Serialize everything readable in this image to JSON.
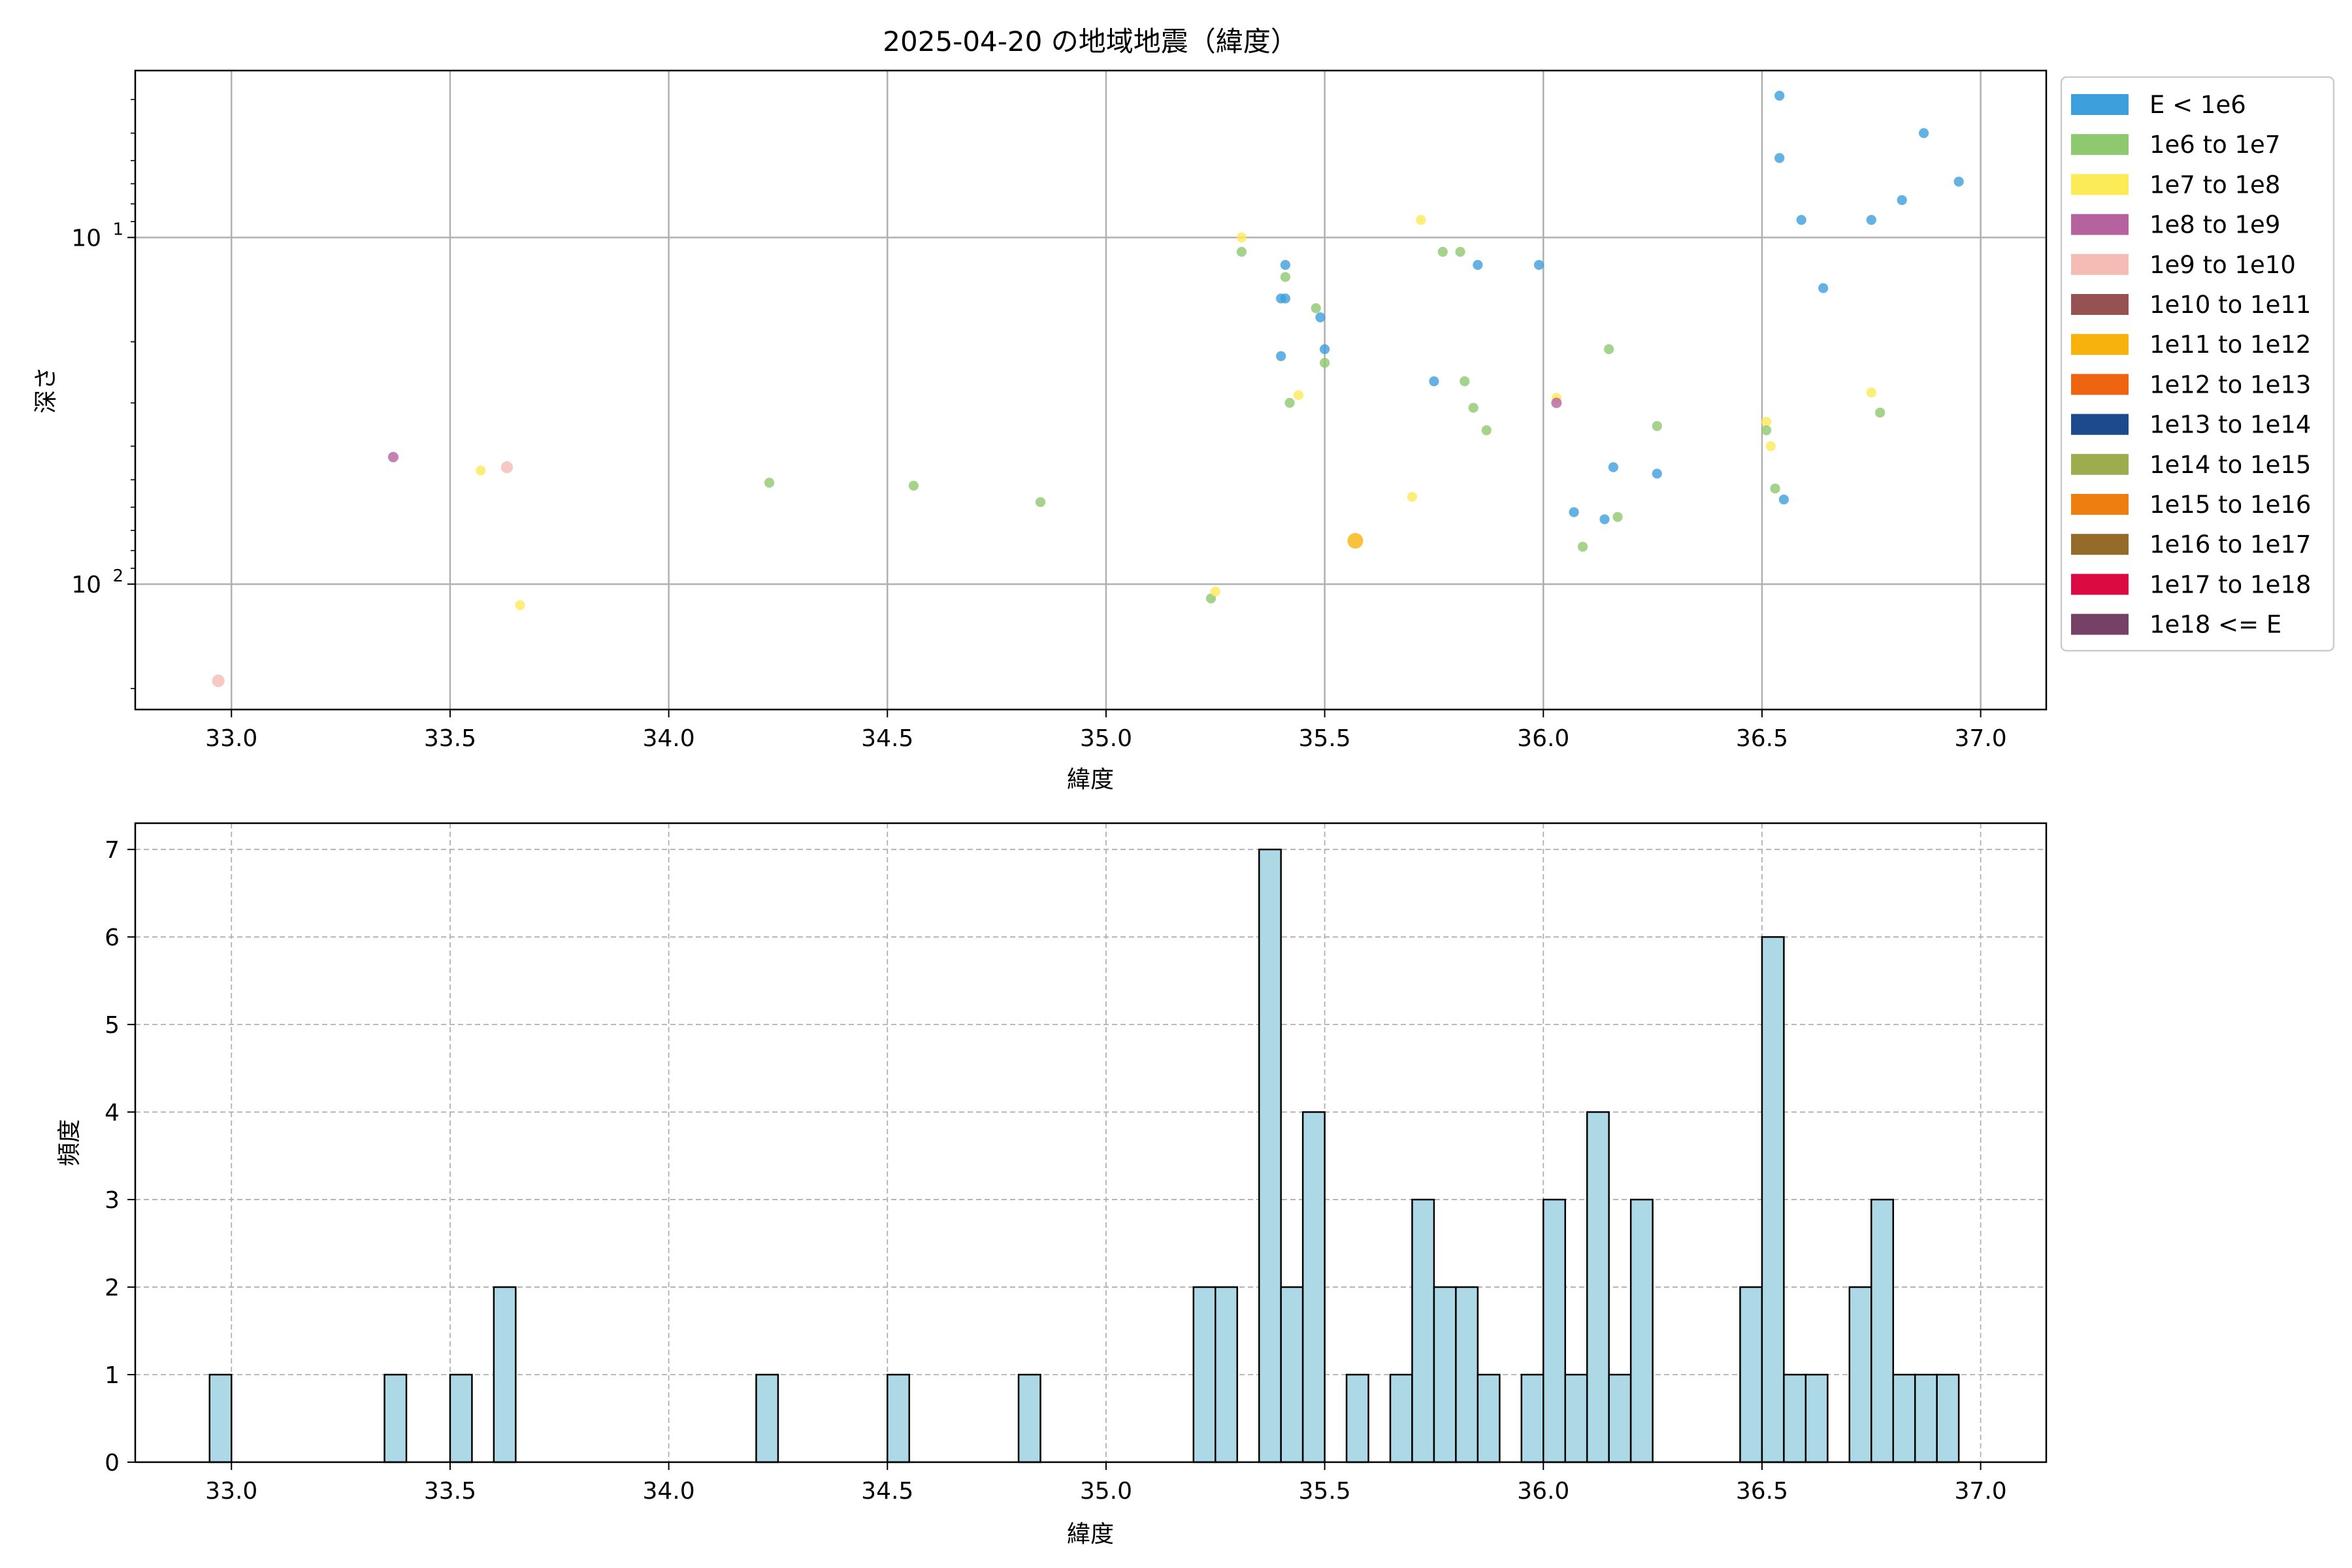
{
  "chart_data": [
    {
      "type": "scatter",
      "title": "2025-04-20 の地域地震（緯度）",
      "xlabel": "緯度",
      "ylabel": "深さ",
      "xlim": [
        32.78,
        37.15
      ],
      "ylim": [
        230,
        3.3
      ],
      "y_scale": "log",
      "y_inverted": true,
      "grid": true,
      "x_ticks": [
        "33.0",
        "33.5",
        "34.0",
        "34.5",
        "35.0",
        "35.5",
        "36.0",
        "36.5",
        "37.0"
      ],
      "y_ticks": [
        {
          "value": 10,
          "base": "10",
          "exp": "1"
        },
        {
          "value": 100,
          "base": "10",
          "exp": "2"
        }
      ],
      "legend": {
        "placement": "outside-right",
        "entries": [
          {
            "label": "E < 1e6",
            "color": "#3d9fdc"
          },
          {
            "label": "1e6 to 1e7",
            "color": "#8ec86f"
          },
          {
            "label": "1e7 to 1e8",
            "color": "#fdea57"
          },
          {
            "label": "1e8 to 1e9",
            "color": "#b5629f"
          },
          {
            "label": "1e9 to 1e10",
            "color": "#f5bcb6"
          },
          {
            "label": "1e10 to 1e11",
            "color": "#955251"
          },
          {
            "label": "1e11 to 1e12",
            "color": "#f7b30b"
          },
          {
            "label": "1e12 to 1e13",
            "color": "#ee6410"
          },
          {
            "label": "1e13 to 1e14",
            "color": "#1d4a8d"
          },
          {
            "label": "1e14 to 1e15",
            "color": "#9dad4e"
          },
          {
            "label": "1e15 to 1e16",
            "color": "#ef7e11"
          },
          {
            "label": "1e16 to 1e17",
            "color": "#956b2a"
          },
          {
            "label": "1e17 to 1e18",
            "color": "#db0a40"
          },
          {
            "label": "1e18 <= E",
            "color": "#764166"
          }
        ]
      },
      "points": [
        {
          "x": 32.97,
          "y": 190,
          "c": 4,
          "s": 1.2
        },
        {
          "x": 33.37,
          "y": 43,
          "c": 3,
          "s": 1.0
        },
        {
          "x": 33.57,
          "y": 47,
          "c": 2,
          "s": 0.95
        },
        {
          "x": 33.63,
          "y": 46,
          "c": 4,
          "s": 1.15
        },
        {
          "x": 33.66,
          "y": 115,
          "c": 2,
          "s": 0.95
        },
        {
          "x": 34.23,
          "y": 51,
          "c": 1,
          "s": 0.95
        },
        {
          "x": 34.56,
          "y": 52,
          "c": 1,
          "s": 0.95
        },
        {
          "x": 34.85,
          "y": 58,
          "c": 1,
          "s": 0.95
        },
        {
          "x": 35.24,
          "y": 110,
          "c": 1,
          "s": 0.95
        },
        {
          "x": 35.25,
          "y": 105,
          "c": 2,
          "s": 0.95
        },
        {
          "x": 35.31,
          "y": 10,
          "c": 2,
          "s": 0.95
        },
        {
          "x": 35.31,
          "y": 11,
          "c": 1,
          "s": 0.95
        },
        {
          "x": 35.4,
          "y": 15,
          "c": 0,
          "s": 0.95
        },
        {
          "x": 35.41,
          "y": 15,
          "c": 0,
          "s": 0.95
        },
        {
          "x": 35.41,
          "y": 12,
          "c": 0,
          "s": 0.95
        },
        {
          "x": 35.41,
          "y": 13,
          "c": 1,
          "s": 0.95
        },
        {
          "x": 35.4,
          "y": 22,
          "c": 0,
          "s": 0.95
        },
        {
          "x": 35.42,
          "y": 30,
          "c": 1,
          "s": 0.95
        },
        {
          "x": 35.44,
          "y": 28.5,
          "c": 2,
          "s": 0.95
        },
        {
          "x": 35.48,
          "y": 16,
          "c": 1,
          "s": 0.95
        },
        {
          "x": 35.49,
          "y": 17,
          "c": 0,
          "s": 0.95
        },
        {
          "x": 35.5,
          "y": 21,
          "c": 0,
          "s": 0.95
        },
        {
          "x": 35.5,
          "y": 23,
          "c": 1,
          "s": 0.95
        },
        {
          "x": 35.57,
          "y": 75,
          "c": 6,
          "s": 1.5
        },
        {
          "x": 35.7,
          "y": 56,
          "c": 2,
          "s": 0.95
        },
        {
          "x": 35.72,
          "y": 8.9,
          "c": 2,
          "s": 0.95
        },
        {
          "x": 35.75,
          "y": 26,
          "c": 0,
          "s": 0.95
        },
        {
          "x": 35.77,
          "y": 11,
          "c": 1,
          "s": 0.95
        },
        {
          "x": 35.81,
          "y": 11,
          "c": 1,
          "s": 0.95
        },
        {
          "x": 35.82,
          "y": 26,
          "c": 1,
          "s": 0.95
        },
        {
          "x": 35.84,
          "y": 31,
          "c": 1,
          "s": 0.95
        },
        {
          "x": 35.85,
          "y": 12,
          "c": 0,
          "s": 0.95
        },
        {
          "x": 35.87,
          "y": 36,
          "c": 1,
          "s": 0.95
        },
        {
          "x": 35.99,
          "y": 12,
          "c": 0,
          "s": 0.95
        },
        {
          "x": 36.03,
          "y": 29,
          "c": 2,
          "s": 0.95
        },
        {
          "x": 36.03,
          "y": 30,
          "c": 3,
          "s": 1.0
        },
        {
          "x": 36.07,
          "y": 62,
          "c": 0,
          "s": 0.95
        },
        {
          "x": 36.09,
          "y": 78,
          "c": 1,
          "s": 0.95
        },
        {
          "x": 36.14,
          "y": 65,
          "c": 0,
          "s": 0.95
        },
        {
          "x": 36.15,
          "y": 21,
          "c": 1,
          "s": 0.95
        },
        {
          "x": 36.16,
          "y": 46,
          "c": 0,
          "s": 0.95
        },
        {
          "x": 36.17,
          "y": 64,
          "c": 1,
          "s": 0.95
        },
        {
          "x": 36.26,
          "y": 35,
          "c": 1,
          "s": 0.95
        },
        {
          "x": 36.26,
          "y": 48,
          "c": 0,
          "s": 0.95
        },
        {
          "x": 36.51,
          "y": 34,
          "c": 2,
          "s": 0.95
        },
        {
          "x": 36.51,
          "y": 36,
          "c": 1,
          "s": 0.95
        },
        {
          "x": 36.52,
          "y": 40,
          "c": 2,
          "s": 0.95
        },
        {
          "x": 36.53,
          "y": 53,
          "c": 1,
          "s": 0.95
        },
        {
          "x": 36.54,
          "y": 3.9,
          "c": 0,
          "s": 0.95
        },
        {
          "x": 36.54,
          "y": 5.9,
          "c": 0,
          "s": 0.95
        },
        {
          "x": 36.55,
          "y": 57,
          "c": 0,
          "s": 0.95
        },
        {
          "x": 36.59,
          "y": 8.9,
          "c": 0,
          "s": 0.95
        },
        {
          "x": 36.64,
          "y": 14,
          "c": 0,
          "s": 0.95
        },
        {
          "x": 36.75,
          "y": 8.9,
          "c": 0,
          "s": 0.95
        },
        {
          "x": 36.75,
          "y": 28,
          "c": 2,
          "s": 0.95
        },
        {
          "x": 36.77,
          "y": 32,
          "c": 1,
          "s": 0.95
        },
        {
          "x": 36.82,
          "y": 7.8,
          "c": 0,
          "s": 0.95
        },
        {
          "x": 36.87,
          "y": 5.0,
          "c": 0,
          "s": 0.95
        },
        {
          "x": 36.95,
          "y": 6.9,
          "c": 0,
          "s": 0.95
        }
      ]
    },
    {
      "type": "bar",
      "subtype": "histogram",
      "xlabel": "緯度",
      "ylabel": "頻度",
      "xlim": [
        32.78,
        37.15
      ],
      "ylim": [
        0,
        7.3
      ],
      "grid": true,
      "x_ticks": [
        "33.0",
        "33.5",
        "34.0",
        "34.5",
        "35.0",
        "35.5",
        "36.0",
        "36.5",
        "37.0"
      ],
      "y_ticks": [
        "0",
        "1",
        "2",
        "3",
        "4",
        "5",
        "6",
        "7"
      ],
      "bar_color": "#add8e6",
      "edge_color": "#000000",
      "bin_width": 0.05,
      "bins": [
        {
          "x": 32.95,
          "count": 1
        },
        {
          "x": 33.35,
          "count": 1
        },
        {
          "x": 33.5,
          "count": 1
        },
        {
          "x": 33.6,
          "count": 2
        },
        {
          "x": 34.2,
          "count": 1
        },
        {
          "x": 34.5,
          "count": 1
        },
        {
          "x": 34.8,
          "count": 1
        },
        {
          "x": 35.2,
          "count": 2
        },
        {
          "x": 35.25,
          "count": 2
        },
        {
          "x": 35.35,
          "count": 7
        },
        {
          "x": 35.4,
          "count": 2
        },
        {
          "x": 35.45,
          "count": 4
        },
        {
          "x": 35.55,
          "count": 1
        },
        {
          "x": 35.65,
          "count": 1
        },
        {
          "x": 35.7,
          "count": 3
        },
        {
          "x": 35.75,
          "count": 2
        },
        {
          "x": 35.8,
          "count": 2
        },
        {
          "x": 35.85,
          "count": 1
        },
        {
          "x": 35.95,
          "count": 1
        },
        {
          "x": 36.0,
          "count": 3
        },
        {
          "x": 36.05,
          "count": 1
        },
        {
          "x": 36.1,
          "count": 4
        },
        {
          "x": 36.15,
          "count": 1
        },
        {
          "x": 36.2,
          "count": 3
        },
        {
          "x": 36.45,
          "count": 2
        },
        {
          "x": 36.5,
          "count": 6
        },
        {
          "x": 36.55,
          "count": 1
        },
        {
          "x": 36.6,
          "count": 1
        },
        {
          "x": 36.7,
          "count": 2
        },
        {
          "x": 36.75,
          "count": 3
        },
        {
          "x": 36.8,
          "count": 1
        },
        {
          "x": 36.85,
          "count": 1
        },
        {
          "x": 36.9,
          "count": 1
        }
      ]
    }
  ]
}
